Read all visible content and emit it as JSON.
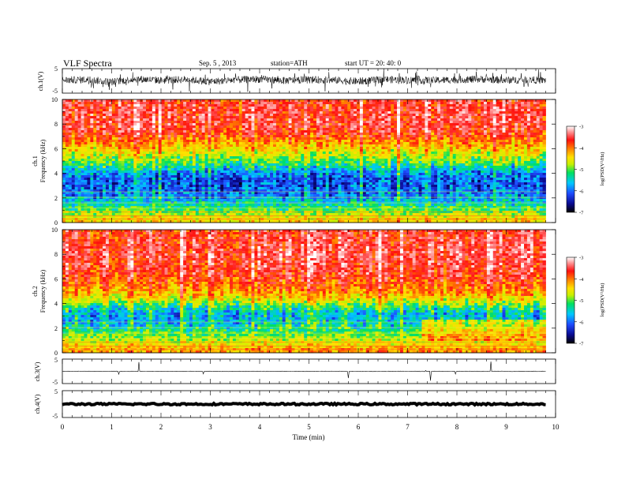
{
  "header": {
    "title": "VLF  Spectra",
    "date": "Sep. 5  , 2013",
    "station": "station=ATH",
    "start": "start  UT  =   20: 40: 0"
  },
  "colors": {
    "spectrogram_scale": [
      "#000000",
      "#0a0a90",
      "#1f4cff",
      "#00c8ff",
      "#00e060",
      "#c8f000",
      "#ffe000",
      "#ff8000",
      "#ff1010",
      "#ff9090",
      "#ffffff"
    ]
  },
  "chart_data": [
    {
      "type": "line",
      "name": "ch1-waveform",
      "ylabel": "ch.1(V)",
      "ylim": [
        -5,
        5
      ],
      "y_ticks": [
        "5",
        "-5"
      ],
      "x": [
        0,
        0.5,
        1,
        1.5,
        2,
        2.5,
        3,
        3.5,
        4,
        4.5,
        5,
        5.5,
        6,
        6.5,
        7,
        7.5,
        8,
        8.5,
        9,
        9.5,
        9.8
      ],
      "y": [
        0.3,
        0.5,
        -0.4,
        0.8,
        0.2,
        0.6,
        -0.3,
        0.4,
        0.7,
        0.1,
        0.5,
        0.3,
        -0.2,
        0.6,
        0.4,
        0.2,
        0.5,
        0.7,
        0.3,
        0.4,
        0.2
      ],
      "amplitude": 1.5
    },
    {
      "type": "heatmap",
      "name": "ch1-spectrogram",
      "ylabel": "ch.1\nFrequency  (kHz)",
      "ylim": [
        0,
        10
      ],
      "y_ticks": [
        "0",
        "2",
        "4",
        "6",
        "8",
        "10"
      ],
      "colorbar_label": "log(PSD(V²/Hz)",
      "colorbar_ticks": [
        "-3",
        "-4",
        "-5",
        "-6",
        "-7"
      ],
      "clim": [
        -7,
        -3
      ],
      "profile_khz": [
        0.2,
        0.6,
        1.0,
        1.5,
        2.0,
        2.5,
        3.0,
        3.5,
        4.0,
        4.5,
        5.0,
        5.5,
        6.0,
        6.5,
        7.0,
        7.5,
        8.0,
        9.0,
        10.0
      ],
      "profile_logpsd": [
        -4.6,
        -4.9,
        -5.3,
        -5.6,
        -5.9,
        -6.1,
        -6.2,
        -6.2,
        -6.0,
        -5.6,
        -5.2,
        -4.9,
        -4.6,
        -4.3,
        -4.0,
        -3.8,
        -3.7,
        -3.7,
        -3.8
      ]
    },
    {
      "type": "heatmap",
      "name": "ch2-spectrogram",
      "ylabel": "ch.2\nFrequency  (kHz)",
      "ylim": [
        0,
        10
      ],
      "y_ticks": [
        "0",
        "2",
        "4",
        "6",
        "8",
        "10"
      ],
      "colorbar_label": "log(PSD(V²/Hz)",
      "colorbar_ticks": [
        "-3",
        "-4",
        "-5",
        "-6",
        "-7"
      ],
      "clim": [
        -7,
        -3
      ],
      "profile_khz": [
        0.2,
        0.6,
        1.0,
        1.5,
        2.0,
        2.5,
        3.0,
        3.5,
        4.0,
        4.5,
        5.0,
        5.5,
        6.0,
        6.5,
        7.0,
        7.5,
        8.0,
        9.0,
        10.0
      ],
      "profile_logpsd": [
        -4.3,
        -4.6,
        -4.9,
        -5.2,
        -5.5,
        -5.7,
        -5.8,
        -5.6,
        -5.1,
        -4.6,
        -4.3,
        -4.1,
        -3.9,
        -3.8,
        -3.7,
        -3.7,
        -3.6,
        -3.7,
        -3.8
      ]
    },
    {
      "type": "line",
      "name": "ch3-waveform",
      "ylabel": "ch.3(V)",
      "ylim": [
        -5,
        5
      ],
      "y_ticks": [
        "5",
        "-5"
      ],
      "x": [
        0,
        9.8
      ],
      "y": [
        0,
        0
      ],
      "amplitude": 0.1
    },
    {
      "type": "line",
      "name": "ch4-waveform",
      "ylabel": "ch.4(V)",
      "ylim": [
        -5,
        5
      ],
      "y_ticks": [
        "5",
        "-5"
      ],
      "x": [
        0,
        9.8
      ],
      "y": [
        0,
        0
      ],
      "amplitude": 0.3
    }
  ],
  "x_axis": {
    "label": "Time  (min)",
    "ticks": [
      "0",
      "1",
      "2",
      "3",
      "4",
      "5",
      "6",
      "7",
      "8",
      "9",
      "10"
    ],
    "xlim": [
      0,
      10
    ],
    "data_end": 9.8
  }
}
